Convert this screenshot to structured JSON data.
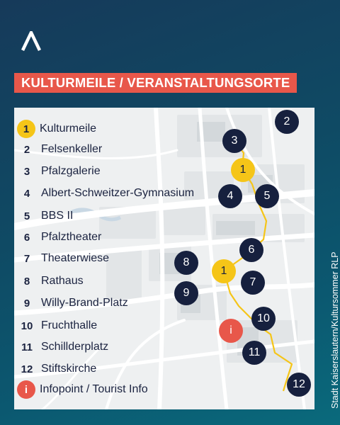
{
  "title": "KULTURMEILE / VERANSTALTUNGSORTE",
  "credit": "Stadt Kaiserslautern/Kultursommer RLP",
  "colors": {
    "background": "#0f4a64",
    "banner": "#e8574a",
    "route": "#f5c518",
    "marker": "#16203e",
    "map": "#eef0f1"
  },
  "icons": {
    "logo": "a-logo-icon",
    "info": "info-icon"
  },
  "legend": [
    {
      "num": "1",
      "label": "Kulturmeile",
      "style": "yellow"
    },
    {
      "num": "2",
      "label": "Felsenkeller",
      "style": "plain"
    },
    {
      "num": "3",
      "label": "Pfalzgalerie",
      "style": "plain"
    },
    {
      "num": "4",
      "label": "Albert-Schweitzer-Gymnasium",
      "style": "plain"
    },
    {
      "num": "5",
      "label": "BBS II",
      "style": "plain"
    },
    {
      "num": "6",
      "label": "Pfalztheater",
      "style": "plain"
    },
    {
      "num": "7",
      "label": "Theaterwiese",
      "style": "plain"
    },
    {
      "num": "8",
      "label": "Rathaus",
      "style": "plain"
    },
    {
      "num": "9",
      "label": "Willy-Brand-Platz",
      "style": "plain"
    },
    {
      "num": "10",
      "label": "Fruchthalle",
      "style": "plain"
    },
    {
      "num": "11",
      "label": "Schillderplatz",
      "style": "plain"
    },
    {
      "num": "12",
      "label": "Stiftskirche",
      "style": "plain"
    },
    {
      "num": "i",
      "label": "Infopoint / Tourist Info",
      "style": "red"
    }
  ],
  "markers": [
    {
      "label": "2",
      "style": "dark"
    },
    {
      "label": "3",
      "style": "dark"
    },
    {
      "label": "1",
      "style": "yellow"
    },
    {
      "label": "4",
      "style": "dark"
    },
    {
      "label": "5",
      "style": "dark"
    },
    {
      "label": "6",
      "style": "dark"
    },
    {
      "label": "8",
      "style": "dark"
    },
    {
      "label": "1",
      "style": "yellow"
    },
    {
      "label": "9",
      "style": "dark"
    },
    {
      "label": "7",
      "style": "dark"
    },
    {
      "label": "10",
      "style": "dark"
    },
    {
      "label": "i",
      "style": "red"
    },
    {
      "label": "11",
      "style": "dark"
    },
    {
      "label": "12",
      "style": "dark"
    }
  ]
}
